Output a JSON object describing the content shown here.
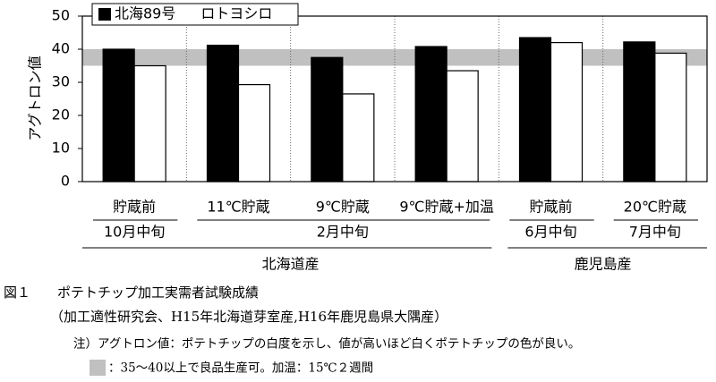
{
  "chart_data": {
    "type": "bar",
    "y_label": "アグトロン値",
    "regions": [
      {
        "name": "北海道産",
        "periods": [
          {
            "name": "10月中旬",
            "categories": [
              "貯蔵前"
            ]
          },
          {
            "name": "2月中旬",
            "categories": [
              "11℃貯蔵",
              "9℃貯蔵",
              "9℃貯蔵+加温"
            ]
          }
        ]
      },
      {
        "name": "鹿児島産",
        "periods": [
          {
            "name": "6月中旬",
            "categories": [
              "貯蔵前"
            ]
          },
          {
            "name": "7月中旬",
            "categories": [
              "20℃貯蔵"
            ]
          }
        ]
      }
    ],
    "series": [
      {
        "name": "北海89号",
        "color": "#000000",
        "values": [
          40,
          41.2,
          37.5,
          40.8,
          43.5,
          42.2
        ]
      },
      {
        "name": "ロトヨシロ",
        "color": "#ffffff",
        "values": [
          35,
          29.3,
          26.5,
          33.5,
          42,
          38.8
        ]
      }
    ],
    "band": [
      35,
      40
    ],
    "band_color": "#c0c0c0",
    "ylim": [
      0,
      50
    ],
    "yticks": [
      0,
      10,
      20,
      30,
      40,
      50
    ],
    "grid": true
  },
  "caption": {
    "figure": "図１",
    "title": "ポテトチップ加工実需者試験成績",
    "source": "（加工適性研究会、H15年北海道芽室産,H16年鹿児島県大隅産）",
    "note": "注）アグトロン値：ポテトチップの白度を示し、値が高いほど白くポテトチップの色が良い。",
    "band_note": "：35～40以上で良品生産可。加温：15℃２週間"
  }
}
